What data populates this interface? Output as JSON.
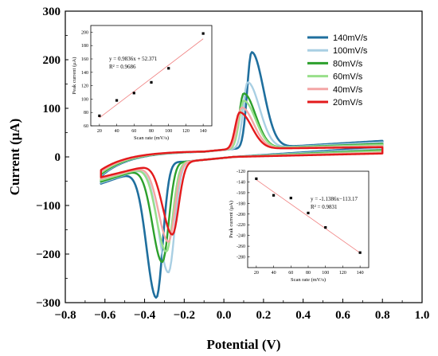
{
  "chart_data": {
    "main": {
      "type": "line",
      "xlabel": "Potential (V)",
      "ylabel": "Current (μA)",
      "xlim": [
        -0.8,
        1.0
      ],
      "ylim": [
        -300,
        300
      ],
      "xticks": [
        -0.8,
        -0.6,
        -0.4,
        -0.2,
        0.0,
        0.2,
        0.4,
        0.6,
        0.8,
        1.0
      ],
      "xtick_labels": [
        "−0.8",
        "−0.6",
        "−0.4",
        "−0.2",
        "0.0",
        "0.2",
        "0.4",
        "0.6",
        "0.8",
        "1.0"
      ],
      "yticks": [
        -300,
        -200,
        -100,
        0,
        100,
        200,
        300
      ],
      "ytick_labels": [
        "−300",
        "−200",
        "−100",
        "0",
        "100",
        "200",
        "300"
      ],
      "legend_position": "top-right",
      "series": [
        {
          "name": "140mV/s",
          "color": "#1f6f9e",
          "anodic_peak": [
            0.14,
            217
          ],
          "cathodic_peak": [
            -0.34,
            -284
          ],
          "start_current": -40,
          "end_current": 28,
          "width": 2.6
        },
        {
          "name": "100mV/s",
          "color": "#a9cfe3",
          "anodic_peak": [
            0.12,
            155
          ],
          "cathodic_peak": [
            -0.28,
            -238
          ],
          "start_current": -38,
          "end_current": 25,
          "width": 2.4
        },
        {
          "name": "80mV/s",
          "color": "#2ca02c",
          "anodic_peak": [
            0.1,
            132
          ],
          "cathodic_peak": [
            -0.31,
            -215
          ],
          "start_current": -36,
          "end_current": 22,
          "width": 2.4
        },
        {
          "name": "60mV/s",
          "color": "#98df8a",
          "anodic_peak": [
            0.1,
            117
          ],
          "cathodic_peak": [
            -0.29,
            -195
          ],
          "start_current": -33,
          "end_current": 20,
          "width": 2.4
        },
        {
          "name": "40mV/s",
          "color": "#f4a6a6",
          "anodic_peak": [
            0.09,
            103
          ],
          "cathodic_peak": [
            -0.28,
            -175
          ],
          "start_current": -30,
          "end_current": 17,
          "width": 2.4
        },
        {
          "name": "20mV/s",
          "color": "#e31a1c",
          "anodic_peak": [
            0.08,
            93
          ],
          "cathodic_peak": [
            -0.26,
            -160
          ],
          "start_current": -27,
          "end_current": 15,
          "width": 2.4
        }
      ]
    },
    "inset_anodic": {
      "type": "scatter",
      "xlabel": "Scan rate (mV/s)",
      "ylabel": "Peak current (μA)",
      "xlim": [
        10,
        150
      ],
      "ylim": [
        60,
        210
      ],
      "xticks": [
        20,
        40,
        60,
        80,
        100,
        120,
        140
      ],
      "yticks": [
        60,
        80,
        100,
        120,
        140,
        160,
        180,
        200
      ],
      "x": [
        20,
        40,
        60,
        80,
        100,
        140
      ],
      "y": [
        75,
        98,
        109,
        125,
        146,
        198
      ],
      "fit": {
        "slope": 0.9836,
        "intercept": 52.371
      },
      "equation": "y = 0.9836x + 52.371",
      "r2": "R² = 0.9686"
    },
    "inset_cathodic": {
      "type": "scatter",
      "xlabel": "Scan rate (mV/s)",
      "ylabel": "Peak current (μA)",
      "xlim": [
        10,
        150
      ],
      "ylim": [
        -300,
        -120
      ],
      "xticks": [
        20,
        40,
        60,
        80,
        100,
        120,
        140
      ],
      "yticks": [
        -120,
        -140,
        -160,
        -180,
        -200,
        -220,
        -240,
        -260,
        -280
      ],
      "x": [
        20,
        40,
        60,
        80,
        100,
        140
      ],
      "y": [
        -134,
        -165,
        -170,
        -198,
        -225,
        -272
      ],
      "fit": {
        "slope": -1.1386,
        "intercept": -113.17
      },
      "equation": "y = -1.1386x−113.17",
      "r2": "R² = 0.9831"
    }
  }
}
